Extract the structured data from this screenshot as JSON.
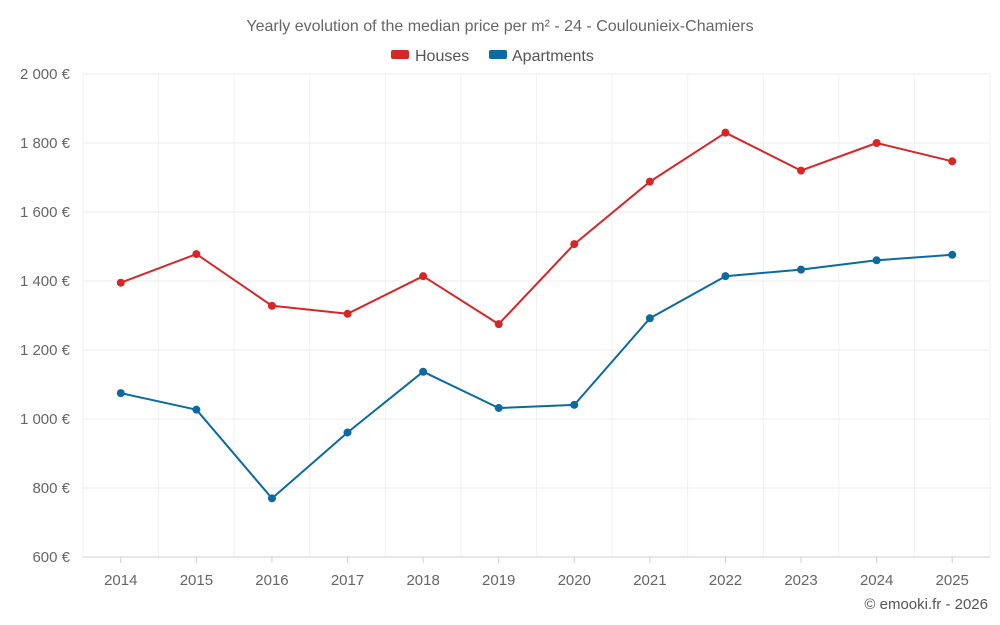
{
  "chart_data": {
    "type": "line",
    "title": "Yearly evolution of the median price per m² - 24 - Coulounieix-Chamiers",
    "categories": [
      "2014",
      "2015",
      "2016",
      "2017",
      "2018",
      "2019",
      "2020",
      "2021",
      "2022",
      "2023",
      "2024",
      "2025"
    ],
    "series": [
      {
        "name": "Houses",
        "color": "#d62728",
        "values": [
          1395,
          1478,
          1328,
          1305,
          1414,
          1275,
          1507,
          1688,
          1830,
          1720,
          1800,
          1747
        ]
      },
      {
        "name": "Apartments",
        "color": "#0a6aa1",
        "values": [
          1075,
          1027,
          770,
          961,
          1137,
          1032,
          1041,
          1292,
          1414,
          1433,
          1460,
          1476
        ]
      }
    ],
    "ylim": [
      600,
      2000
    ],
    "yticks": [
      600,
      800,
      1000,
      1200,
      1400,
      1600,
      1800,
      2000
    ],
    "ytick_labels": [
      "600 €",
      "800 €",
      "1 000 €",
      "1 200 €",
      "1 400 €",
      "1 600 €",
      "1 800 €",
      "2 000 €"
    ],
    "xlabel": "",
    "ylabel": "",
    "legend": "top-center",
    "grid": true
  },
  "credit": "© emooki.fr - 2026"
}
